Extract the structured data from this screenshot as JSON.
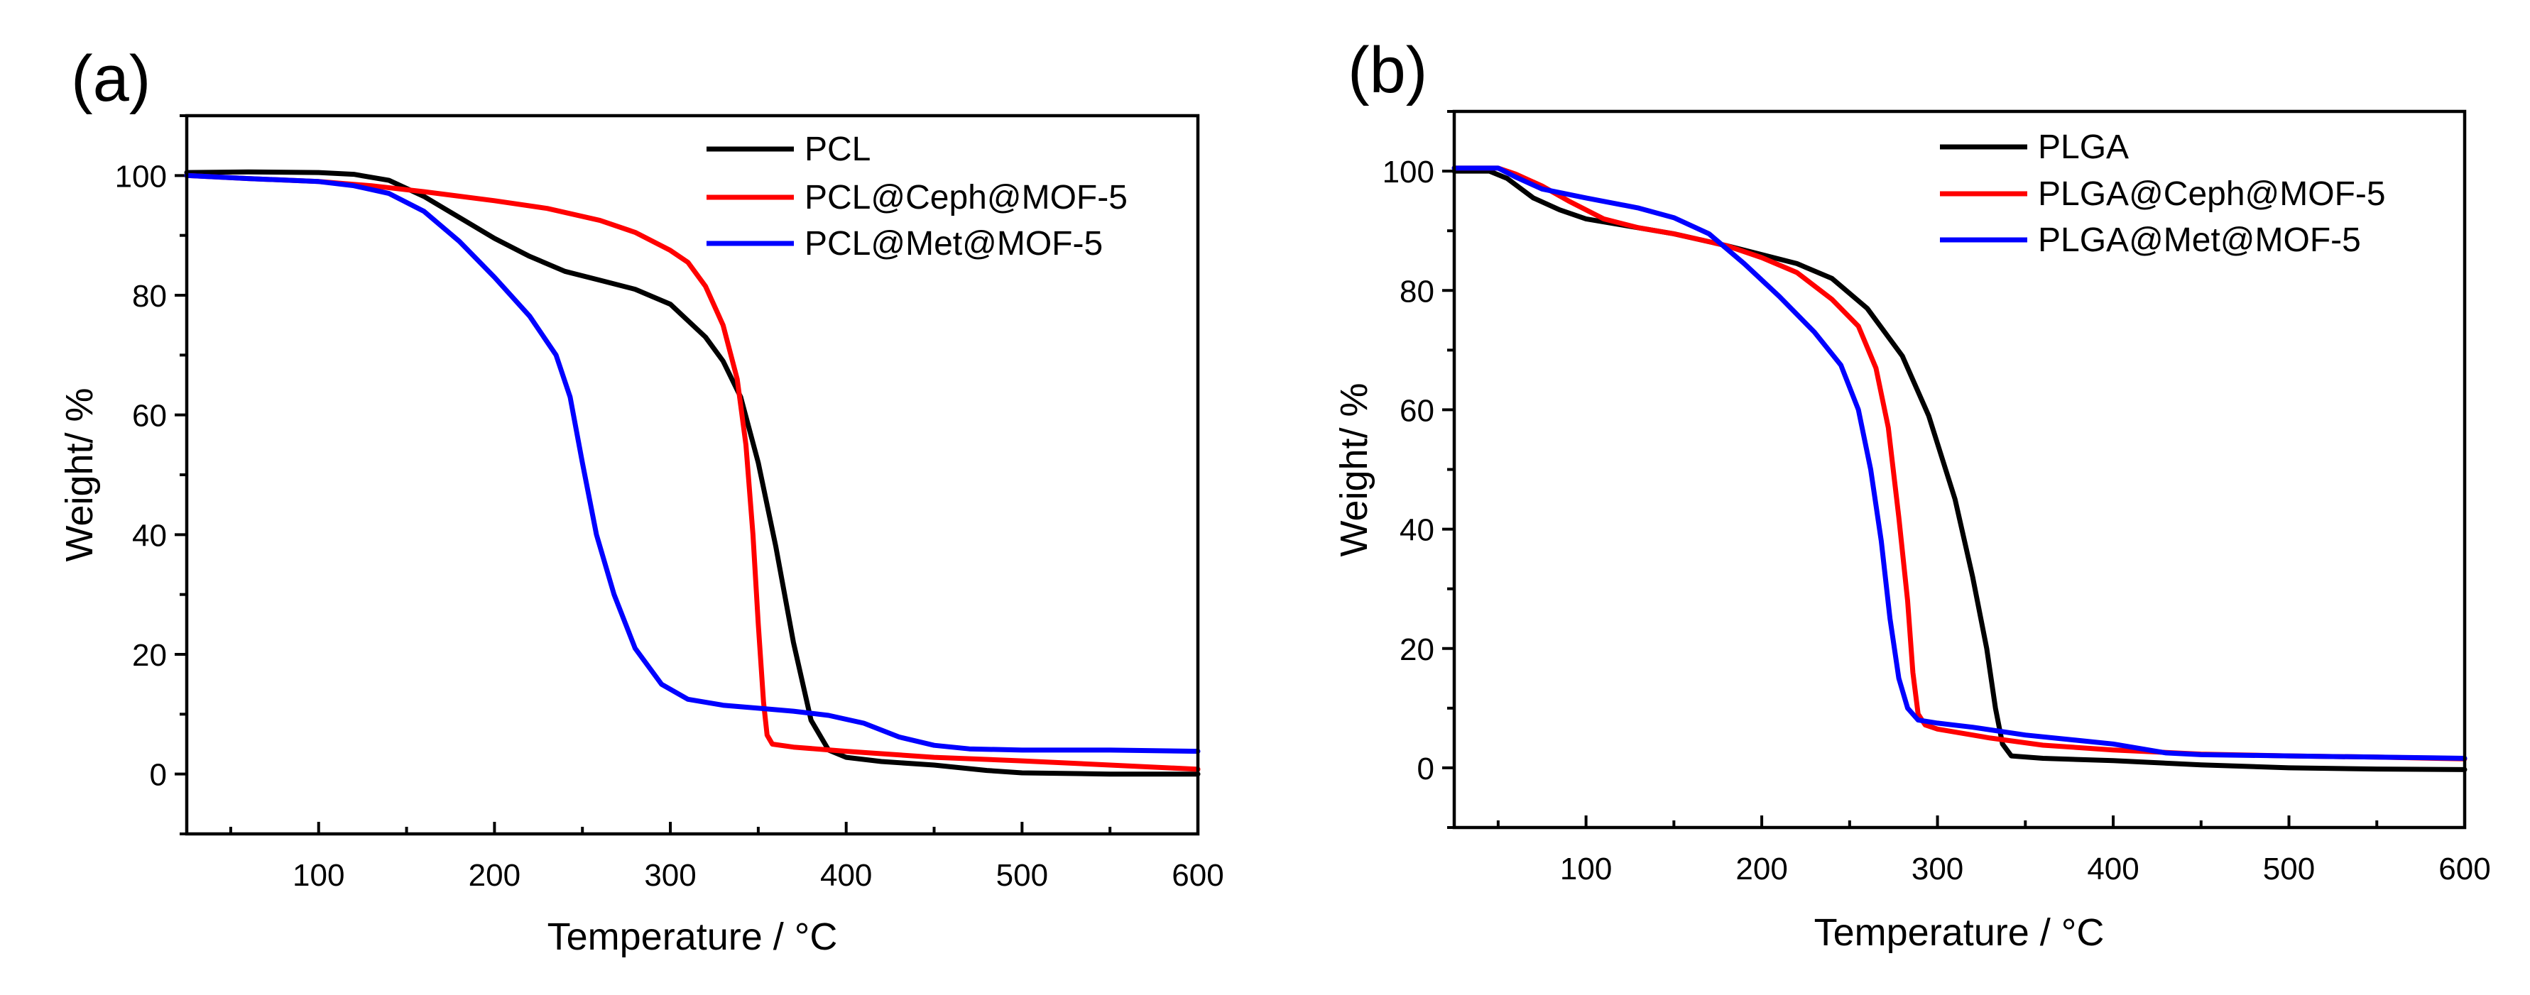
{
  "chart_data": [
    {
      "type": "line",
      "panel_label": "(a)",
      "xlabel": "Temperature / °C",
      "ylabel": "Weight/ %",
      "xlim": [
        25,
        600
      ],
      "ylim": [
        -10,
        110
      ],
      "xticks": [
        100,
        200,
        300,
        400,
        500,
        600
      ],
      "yticks": [
        0,
        20,
        40,
        60,
        80,
        100
      ],
      "legend_position": "top-right",
      "series": [
        {
          "name": "PCL",
          "color": "#000000",
          "points": [
            [
              25,
              100.5
            ],
            [
              60,
              100.6
            ],
            [
              100,
              100.5
            ],
            [
              120,
              100.2
            ],
            [
              140,
              99.2
            ],
            [
              160,
              96.5
            ],
            [
              180,
              93
            ],
            [
              200,
              89.5
            ],
            [
              220,
              86.5
            ],
            [
              240,
              84
            ],
            [
              260,
              82.5
            ],
            [
              280,
              81
            ],
            [
              300,
              78.5
            ],
            [
              320,
              73
            ],
            [
              330,
              69
            ],
            [
              340,
              63
            ],
            [
              350,
              52
            ],
            [
              360,
              38
            ],
            [
              370,
              22
            ],
            [
              380,
              9
            ],
            [
              390,
              4
            ],
            [
              400,
              2.8
            ],
            [
              420,
              2.1
            ],
            [
              450,
              1.5
            ],
            [
              480,
              0.6
            ],
            [
              500,
              0.2
            ],
            [
              550,
              0
            ],
            [
              600,
              0
            ]
          ]
        },
        {
          "name": "PCL@Ceph@MOF-5",
          "color": "#ff0000",
          "points": [
            [
              25,
              100
            ],
            [
              60,
              99.5
            ],
            [
              100,
              99
            ],
            [
              130,
              98.3
            ],
            [
              160,
              97.3
            ],
            [
              200,
              95.8
            ],
            [
              230,
              94.5
            ],
            [
              260,
              92.5
            ],
            [
              280,
              90.5
            ],
            [
              300,
              87.5
            ],
            [
              310,
              85.5
            ],
            [
              320,
              81.5
            ],
            [
              330,
              75
            ],
            [
              338,
              66
            ],
            [
              343,
              55
            ],
            [
              347,
              40
            ],
            [
              350,
              25
            ],
            [
              353,
              12
            ],
            [
              355,
              6.5
            ],
            [
              358,
              5
            ],
            [
              370,
              4.5
            ],
            [
              400,
              3.8
            ],
            [
              450,
              2.8
            ],
            [
              500,
              2.2
            ],
            [
              550,
              1.5
            ],
            [
              600,
              0.8
            ]
          ]
        },
        {
          "name": "PCL@Met@MOF-5",
          "color": "#0000ff",
          "points": [
            [
              25,
              100
            ],
            [
              60,
              99.5
            ],
            [
              100,
              99
            ],
            [
              120,
              98.3
            ],
            [
              140,
              97
            ],
            [
              160,
              94
            ],
            [
              180,
              89
            ],
            [
              200,
              83
            ],
            [
              220,
              76.5
            ],
            [
              235,
              70
            ],
            [
              243,
              63
            ],
            [
              250,
              52
            ],
            [
              258,
              40
            ],
            [
              268,
              30
            ],
            [
              280,
              21
            ],
            [
              295,
              15
            ],
            [
              310,
              12.5
            ],
            [
              330,
              11.5
            ],
            [
              350,
              11
            ],
            [
              370,
              10.5
            ],
            [
              390,
              9.8
            ],
            [
              410,
              8.5
            ],
            [
              430,
              6.2
            ],
            [
              450,
              4.8
            ],
            [
              470,
              4.2
            ],
            [
              500,
              4
            ],
            [
              550,
              4
            ],
            [
              600,
              3.8
            ]
          ]
        }
      ]
    },
    {
      "type": "line",
      "panel_label": "(b)",
      "xlabel": "Temperature / °C",
      "ylabel": "Weight/ %",
      "xlim": [
        25,
        600
      ],
      "ylim": [
        -10,
        110
      ],
      "xticks": [
        100,
        200,
        300,
        400,
        500,
        600
      ],
      "yticks": [
        0,
        20,
        40,
        60,
        80,
        100
      ],
      "legend_position": "top-right",
      "series": [
        {
          "name": "PLGA",
          "color": "#000000",
          "points": [
            [
              25,
              100
            ],
            [
              45,
              100
            ],
            [
              55,
              98.8
            ],
            [
              70,
              95.5
            ],
            [
              85,
              93.5
            ],
            [
              100,
              92
            ],
            [
              120,
              91
            ],
            [
              150,
              89.5
            ],
            [
              180,
              87.5
            ],
            [
              200,
              86
            ],
            [
              220,
              84.5
            ],
            [
              240,
              82
            ],
            [
              260,
              77
            ],
            [
              280,
              69
            ],
            [
              295,
              59
            ],
            [
              310,
              45
            ],
            [
              320,
              32
            ],
            [
              328,
              20
            ],
            [
              333,
              10
            ],
            [
              337,
              4
            ],
            [
              342,
              2
            ],
            [
              360,
              1.6
            ],
            [
              400,
              1.2
            ],
            [
              450,
              0.5
            ],
            [
              500,
              0
            ],
            [
              550,
              -0.2
            ],
            [
              600,
              -0.3
            ]
          ]
        },
        {
          "name": "PLGA@Ceph@MOF-5",
          "color": "#ff0000",
          "points": [
            [
              25,
              100.5
            ],
            [
              50,
              100.5
            ],
            [
              60,
              99.5
            ],
            [
              75,
              97.5
            ],
            [
              90,
              95
            ],
            [
              110,
              92
            ],
            [
              130,
              90.5
            ],
            [
              150,
              89.5
            ],
            [
              180,
              87.5
            ],
            [
              200,
              85.5
            ],
            [
              220,
              83
            ],
            [
              240,
              78.5
            ],
            [
              255,
              74
            ],
            [
              265,
              67
            ],
            [
              272,
              57
            ],
            [
              278,
              42
            ],
            [
              283,
              28
            ],
            [
              286,
              16
            ],
            [
              289,
              9
            ],
            [
              293,
              7.2
            ],
            [
              300,
              6.5
            ],
            [
              330,
              5
            ],
            [
              360,
              3.8
            ],
            [
              400,
              3
            ],
            [
              450,
              2.3
            ],
            [
              500,
              2
            ],
            [
              550,
              1.8
            ],
            [
              600,
              1.5
            ]
          ]
        },
        {
          "name": "PLGA@Met@MOF-5",
          "color": "#0000ff",
          "points": [
            [
              25,
              100.5
            ],
            [
              50,
              100.5
            ],
            [
              60,
              99
            ],
            [
              75,
              97
            ],
            [
              100,
              95.5
            ],
            [
              130,
              93.8
            ],
            [
              150,
              92.2
            ],
            [
              170,
              89.5
            ],
            [
              190,
              84.5
            ],
            [
              210,
              79
            ],
            [
              230,
              73
            ],
            [
              245,
              67.5
            ],
            [
              255,
              60
            ],
            [
              262,
              50
            ],
            [
              268,
              38
            ],
            [
              273,
              25
            ],
            [
              278,
              15
            ],
            [
              283,
              10
            ],
            [
              289,
              8
            ],
            [
              300,
              7.5
            ],
            [
              320,
              6.8
            ],
            [
              350,
              5.5
            ],
            [
              400,
              4
            ],
            [
              430,
              2.5
            ],
            [
              450,
              2.2
            ],
            [
              500,
              2
            ],
            [
              550,
              1.8
            ],
            [
              600,
              1.6
            ]
          ]
        }
      ]
    }
  ]
}
